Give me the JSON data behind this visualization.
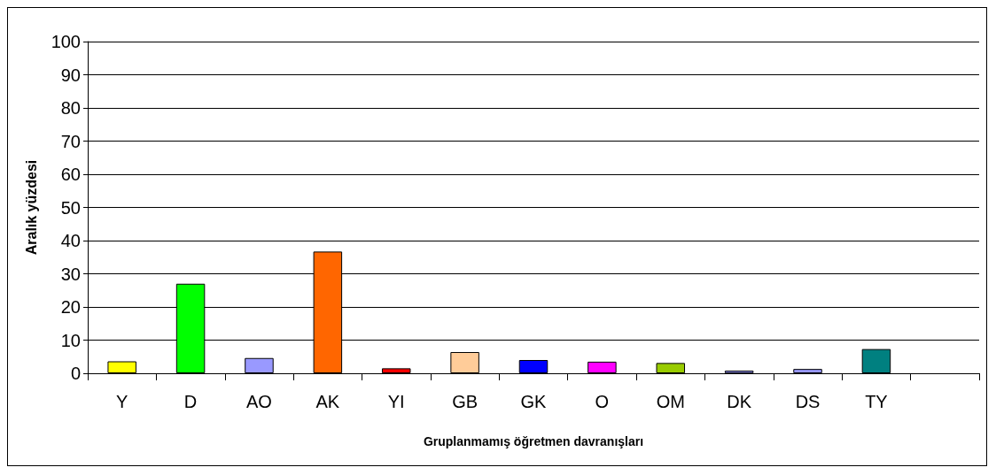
{
  "chart_data": {
    "type": "bar",
    "xlabel": "Gruplanmamış öğretmen davranışları",
    "ylabel": "Aralık yüzdesi",
    "categories": [
      "Y",
      "D",
      "AO",
      "AK",
      "YI",
      "GB",
      "GK",
      "O",
      "OM",
      "DK",
      "DS",
      "TY",
      null
    ],
    "values": [
      3.6,
      27.0,
      4.6,
      36.7,
      1.5,
      6.4,
      4.0,
      3.5,
      3.1,
      0.8,
      1.3,
      7.3,
      null
    ],
    "colors": [
      "#ffff00",
      "#00ff00",
      "#9999ff",
      "#ff6600",
      "#ff0000",
      "#ffcc99",
      "#0000ff",
      "#ff00ff",
      "#99cc00",
      "#9999ff",
      "#9999ff",
      "#008080",
      "#000000"
    ],
    "ylim": [
      0,
      100
    ],
    "yticks": [
      0,
      10,
      20,
      30,
      40,
      50,
      60,
      70,
      80,
      90,
      100
    ],
    "grid": "y"
  }
}
